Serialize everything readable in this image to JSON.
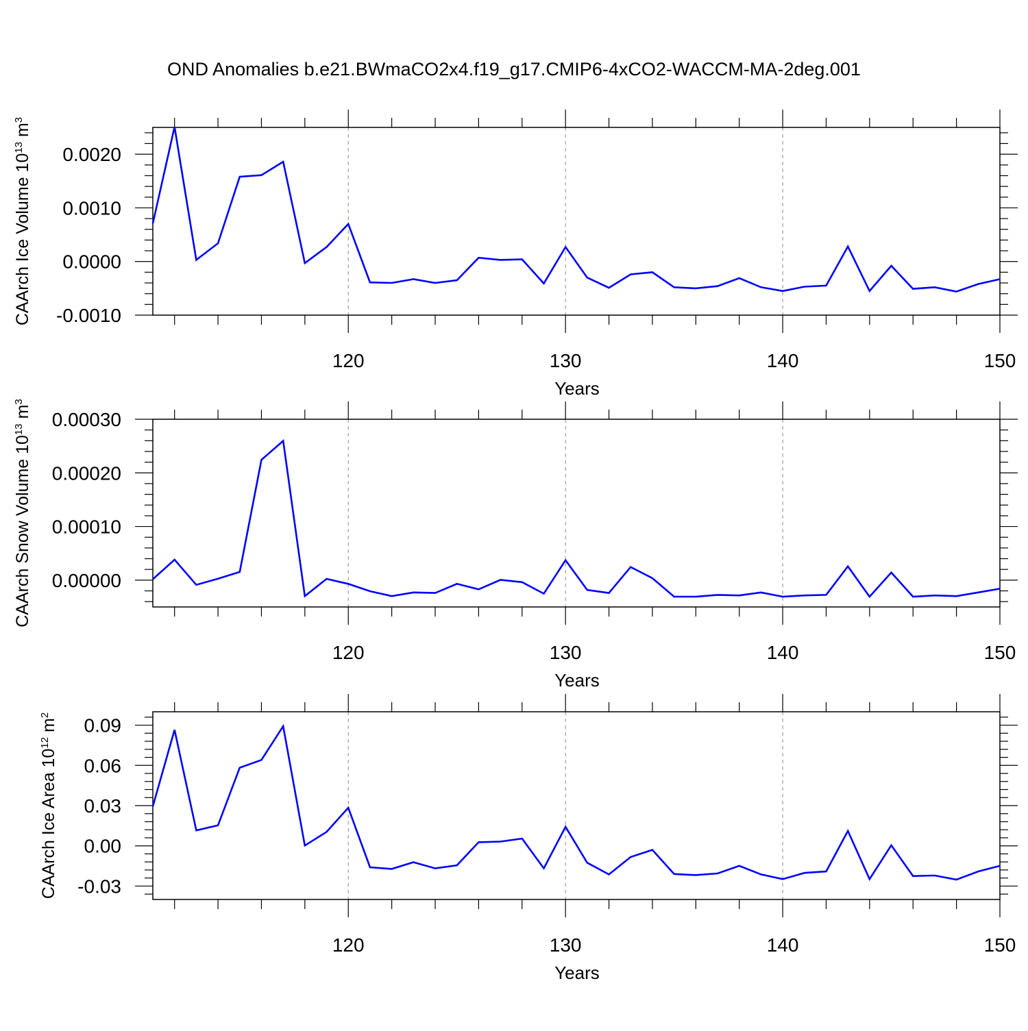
{
  "title": "OND Anomalies b.e21.BWmaCO2x4.f19_g17.CMIP6-4xCO2-WACCM-MA-2deg.001",
  "colors": {
    "series": "#0000ff",
    "axis": "#000000",
    "grid": "#888888"
  },
  "chart_data": [
    {
      "type": "line",
      "ylabel": "CAArch Ice Volume",
      "yunit_base": "10",
      "yunit_exp": "13",
      "yunit_label": "m",
      "yunit_label_exp": "3",
      "xlabel": "Years",
      "xlim": [
        111,
        150
      ],
      "ylim": [
        -0.001,
        0.0025
      ],
      "xticks": [
        "120",
        "130",
        "140",
        "150"
      ],
      "yticks": [
        "0.0020",
        "0.0010",
        "0.0000",
        "-0.0010"
      ],
      "ytick_values": [
        0.002,
        0.001,
        0.0,
        -0.001
      ],
      "grid": "vertical dashed at major x ticks",
      "series": [
        {
          "x": [
            111,
            112,
            113,
            114,
            115,
            116,
            117,
            118,
            119,
            120,
            121,
            122,
            123,
            124,
            125,
            126,
            127,
            128,
            129,
            130,
            131,
            132,
            133,
            134,
            135,
            136,
            137,
            138,
            139,
            140,
            141,
            142,
            143,
            144,
            145,
            146,
            147,
            148,
            149,
            150
          ],
          "values": [
            0.00071,
            0.00251,
            3e-05,
            0.00034,
            0.00158,
            0.00161,
            0.00186,
            -3e-05,
            0.00027,
            0.0007,
            -0.00039,
            -0.0004,
            -0.00033,
            -0.0004,
            -0.00035,
            7e-05,
            3e-05,
            4e-05,
            -0.00041,
            0.00027,
            -0.0003,
            -0.00049,
            -0.00024,
            -0.0002,
            -0.00048,
            -0.0005,
            -0.00046,
            -0.00031,
            -0.00048,
            -0.00055,
            -0.00047,
            -0.00045,
            0.00028,
            -0.00055,
            -8e-05,
            -0.00051,
            -0.00048,
            -0.00056,
            -0.00042,
            -0.00033
          ]
        }
      ]
    },
    {
      "type": "line",
      "ylabel": "CAArch Snow Volume",
      "yunit_base": "10",
      "yunit_exp": "13",
      "yunit_label": "m",
      "yunit_label_exp": "3",
      "xlabel": "Years",
      "xlim": [
        111,
        150
      ],
      "ylim": [
        -5e-05,
        0.0003
      ],
      "xticks": [
        "120",
        "130",
        "140",
        "150"
      ],
      "yticks": [
        "0.00030",
        "0.00020",
        "0.00010",
        "0.00000"
      ],
      "ytick_values": [
        0.0003,
        0.0002,
        0.0001,
        0.0
      ],
      "grid": "vertical dashed at major x ticks",
      "series": [
        {
          "x": [
            111,
            112,
            113,
            114,
            115,
            116,
            117,
            118,
            119,
            120,
            121,
            122,
            123,
            124,
            125,
            126,
            127,
            128,
            129,
            130,
            131,
            132,
            133,
            134,
            135,
            136,
            137,
            138,
            139,
            140,
            141,
            142,
            143,
            144,
            145,
            146,
            147,
            148,
            149,
            150
          ],
          "values": [
            1.7e-06,
            3.82e-05,
            -8.8e-06,
            2.7e-06,
            1.53e-05,
            0.0002245,
            0.0002596,
            -2.98e-05,
            2.4e-06,
            -6.9e-06,
            -2.06e-05,
            -2.98e-05,
            -2.29e-05,
            -2.4e-05,
            -6.9e-06,
            -1.72e-05,
            5e-07,
            -3.8e-06,
            -2.52e-05,
            3.71e-05,
            -1.83e-05,
            -2.4e-05,
            2.45e-05,
            3.6e-06,
            -3.09e-05,
            -3.09e-05,
            -2.75e-05,
            -2.86e-05,
            -2.29e-05,
            -3.09e-05,
            -2.86e-05,
            -2.75e-05,
            2.57e-05,
            -3.09e-05,
            1.42e-05,
            -3.09e-05,
            -2.86e-05,
            -2.98e-05,
            -2.29e-05,
            -1.6e-05
          ]
        }
      ]
    },
    {
      "type": "line",
      "ylabel": "CAArch Ice Area",
      "yunit_base": "10",
      "yunit_exp": "12",
      "yunit_label": "m",
      "yunit_label_exp": "2",
      "xlabel": "Years",
      "xlim": [
        111,
        150
      ],
      "ylim": [
        -0.04,
        0.1
      ],
      "xticks": [
        "120",
        "130",
        "140",
        "150"
      ],
      "yticks": [
        "0.09",
        "0.06",
        "0.03",
        "0.00",
        "-0.03"
      ],
      "ytick_values": [
        0.09,
        0.06,
        0.03,
        0.0,
        -0.03
      ],
      "grid": "vertical dashed at major x ticks",
      "series": [
        {
          "x": [
            111,
            112,
            113,
            114,
            115,
            116,
            117,
            118,
            119,
            120,
            121,
            122,
            123,
            124,
            125,
            126,
            127,
            128,
            129,
            130,
            131,
            132,
            133,
            134,
            135,
            136,
            137,
            138,
            139,
            140,
            141,
            142,
            143,
            144,
            145,
            146,
            147,
            148,
            149,
            150
          ],
          "values": [
            0.0295,
            0.0865,
            0.0115,
            0.0153,
            0.0583,
            0.0641,
            0.0892,
            0.0002,
            0.0104,
            0.0284,
            -0.016,
            -0.0172,
            -0.0122,
            -0.0168,
            -0.0145,
            0.0027,
            0.0032,
            0.0054,
            -0.0168,
            0.0142,
            -0.0126,
            -0.0213,
            -0.0083,
            -0.003,
            -0.021,
            -0.0218,
            -0.0206,
            -0.0149,
            -0.0213,
            -0.0248,
            -0.0202,
            -0.0191,
            0.0111,
            -0.0248,
            0.0004,
            -0.0225,
            -0.0221,
            -0.0252,
            -0.0191,
            -0.0149
          ]
        }
      ]
    }
  ]
}
